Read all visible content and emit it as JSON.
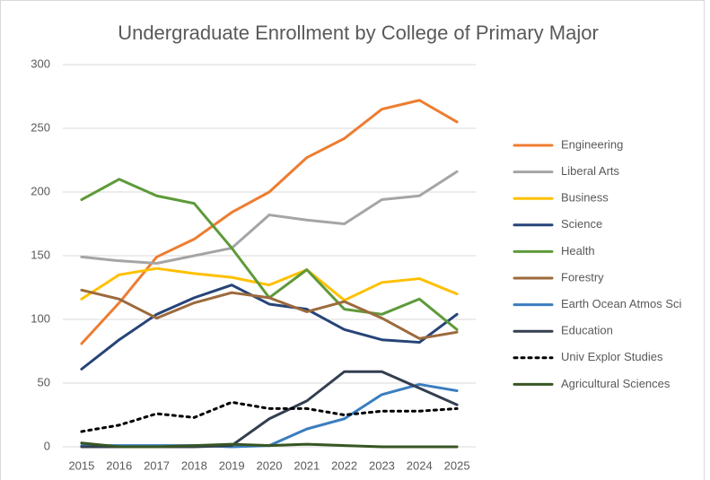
{
  "chart_data": {
    "type": "line",
    "title": "Undergraduate Enrollment by College of Primary Major",
    "x": [
      2015,
      2016,
      2017,
      2018,
      2019,
      2020,
      2021,
      2022,
      2023,
      2024,
      2025
    ],
    "ylim": [
      0,
      300
    ],
    "yticks": [
      0,
      50,
      100,
      150,
      200,
      250,
      300
    ],
    "grid": true,
    "legend": "right",
    "series": [
      {
        "name": "Engineering",
        "color": "#ed7d31",
        "values": [
          81,
          113,
          149,
          163,
          184,
          200,
          227,
          242,
          265,
          272,
          255
        ]
      },
      {
        "name": "Liberal Arts",
        "color": "#a5a5a5",
        "values": [
          149,
          146,
          144,
          150,
          156,
          182,
          178,
          175,
          194,
          197,
          216
        ]
      },
      {
        "name": "Business",
        "color": "#ffc000",
        "values": [
          116,
          135,
          140,
          136,
          133,
          127,
          139,
          115,
          129,
          132,
          120
        ]
      },
      {
        "name": "Science",
        "color": "#264478",
        "values": [
          61,
          84,
          104,
          117,
          127,
          112,
          108,
          92,
          84,
          82,
          104
        ]
      },
      {
        "name": "Health",
        "color": "#5e9a3a",
        "values": [
          194,
          210,
          197,
          191,
          156,
          117,
          139,
          108,
          104,
          116,
          92
        ]
      },
      {
        "name": "Forestry",
        "color": "#9c6a3c",
        "values": [
          123,
          116,
          101,
          113,
          121,
          117,
          106,
          114,
          101,
          85,
          90
        ]
      },
      {
        "name": "Earth Ocean Atmos Sci",
        "color": "#3a7dbf",
        "values": [
          1,
          1,
          1,
          1,
          0,
          1,
          14,
          22,
          41,
          49,
          44
        ]
      },
      {
        "name": "Education",
        "color": "#333f50",
        "values": [
          0,
          0,
          0,
          0,
          1,
          22,
          36,
          59,
          59,
          46,
          33
        ]
      },
      {
        "name": "Univ Explor Studies",
        "color": "#000000",
        "dash": "dotted",
        "values": [
          12,
          17,
          26,
          23,
          35,
          30,
          30,
          25,
          28,
          28,
          30
        ]
      },
      {
        "name": "Agricultural Sciences",
        "color": "#375623",
        "values": [
          3,
          0,
          0,
          1,
          2,
          1,
          2,
          1,
          0,
          0,
          0
        ]
      }
    ]
  }
}
